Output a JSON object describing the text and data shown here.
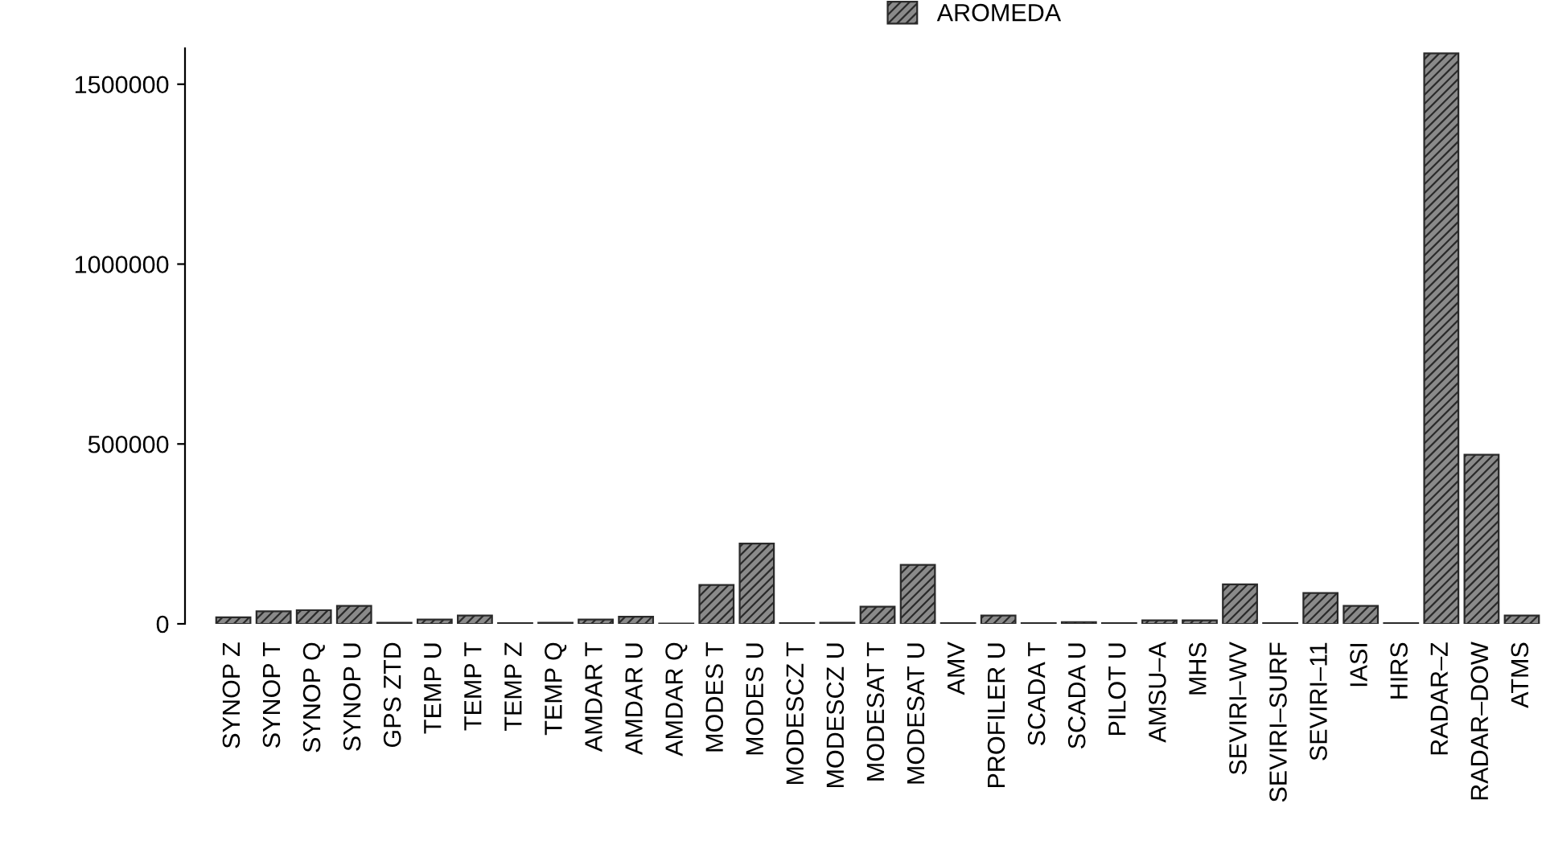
{
  "chart_data": {
    "type": "bar",
    "categories": [
      "SYNOP Z",
      "SYNOP T",
      "SYNOP Q",
      "SYNOP U",
      "GPS ZTD",
      "TEMP U",
      "TEMP T",
      "TEMP Z",
      "TEMP Q",
      "AMDAR T",
      "AMDAR U",
      "AMDAR Q",
      "MODES T",
      "MODES U",
      "MODESCZ T",
      "MODESCZ U",
      "MODESAT T",
      "MODESAT U",
      "AMV",
      "PROFILER U",
      "SCADA T",
      "SCADA U",
      "PILOT U",
      "AMSU–A",
      "MHS",
      "SEVIRI–WV",
      "SEVIRI–SURF",
      "SEVIRI–11",
      "IASI",
      "HIRS",
      "RADAR–Z",
      "RADAR–DOW",
      "ATMS"
    ],
    "series": [
      {
        "name": "AROMEDA",
        "color": "#2a2a2a",
        "values": [
          18000,
          35000,
          38000,
          50000,
          3000,
          12000,
          23000,
          2000,
          3000,
          12000,
          20000,
          1000,
          108000,
          223000,
          2000,
          3000,
          48000,
          164000,
          2000,
          23000,
          2000,
          5000,
          2000,
          10000,
          10000,
          110000,
          2000,
          86000,
          50000,
          2000,
          1586000,
          470000,
          23000
        ]
      }
    ],
    "ylim": [
      0,
      1600000
    ],
    "yticks": [
      0,
      500000,
      1000000,
      1500000
    ],
    "legend": "top",
    "grid": false
  }
}
